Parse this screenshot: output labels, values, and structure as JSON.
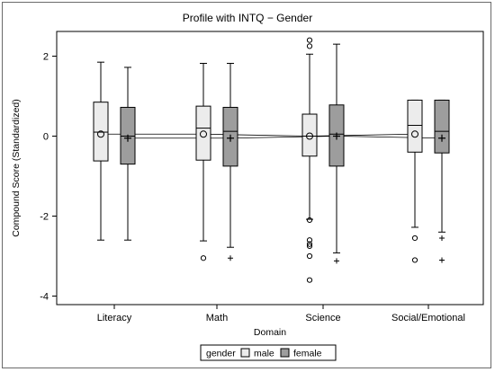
{
  "chart_data": {
    "type": "boxplot",
    "title": "Profile with INTQ − Gender",
    "xlabel": "Domain",
    "ylabel": "Compound Score (Standardized)",
    "ylim": [
      -4.3,
      2.5
    ],
    "yticks": [
      2,
      0,
      -2,
      -4
    ],
    "yticklabels": [
      "2",
      "0",
      "-2",
      "-4"
    ],
    "categories": [
      "Literacy",
      "Math",
      "Science",
      "Social/Emotional"
    ],
    "legend": {
      "title": "gender",
      "entries": [
        "male",
        "female"
      ],
      "position": "bottom"
    },
    "series": [
      {
        "name": "male",
        "color": "#ececec",
        "mean_marker": "circle",
        "boxes": [
          {
            "min": -2.6,
            "q1": -0.62,
            "median": 0.1,
            "q3": 0.85,
            "max": 1.85,
            "mean": 0.05,
            "outliers": []
          },
          {
            "min": -2.62,
            "q1": -0.6,
            "median": 0.2,
            "q3": 0.75,
            "max": 1.82,
            "mean": 0.05,
            "outliers": [
              -3.05
            ]
          },
          {
            "min": -2.08,
            "q1": -0.5,
            "median": 0.0,
            "q3": 0.55,
            "max": 2.05,
            "mean": 0.0,
            "outliers": [
              2.4,
              2.25,
              -2.1,
              -2.6,
              -2.7,
              -2.75,
              -3.0,
              -3.6
            ]
          },
          {
            "min": -2.28,
            "q1": -0.4,
            "median": 0.27,
            "q3": 0.9,
            "max": 0.9,
            "mean": 0.05,
            "outliers": [
              -2.55,
              -3.1
            ]
          }
        ]
      },
      {
        "name": "female",
        "color": "#9d9d9d",
        "mean_marker": "plus",
        "boxes": [
          {
            "min": -2.6,
            "q1": -0.7,
            "median": 0.0,
            "q3": 0.72,
            "max": 1.72,
            "mean": -0.05,
            "outliers": []
          },
          {
            "min": -2.78,
            "q1": -0.75,
            "median": 0.12,
            "q3": 0.72,
            "max": 1.82,
            "mean": -0.05,
            "outliers": [
              -3.05
            ]
          },
          {
            "min": -2.92,
            "q1": -0.75,
            "median": 0.05,
            "q3": 0.78,
            "max": 2.3,
            "mean": 0.0,
            "outliers": [
              -3.12
            ]
          },
          {
            "min": -2.4,
            "q1": -0.42,
            "median": 0.12,
            "q3": 0.9,
            "max": 0.9,
            "mean": -0.05,
            "outliers": [
              -2.55,
              -3.1
            ]
          }
        ]
      }
    ]
  }
}
